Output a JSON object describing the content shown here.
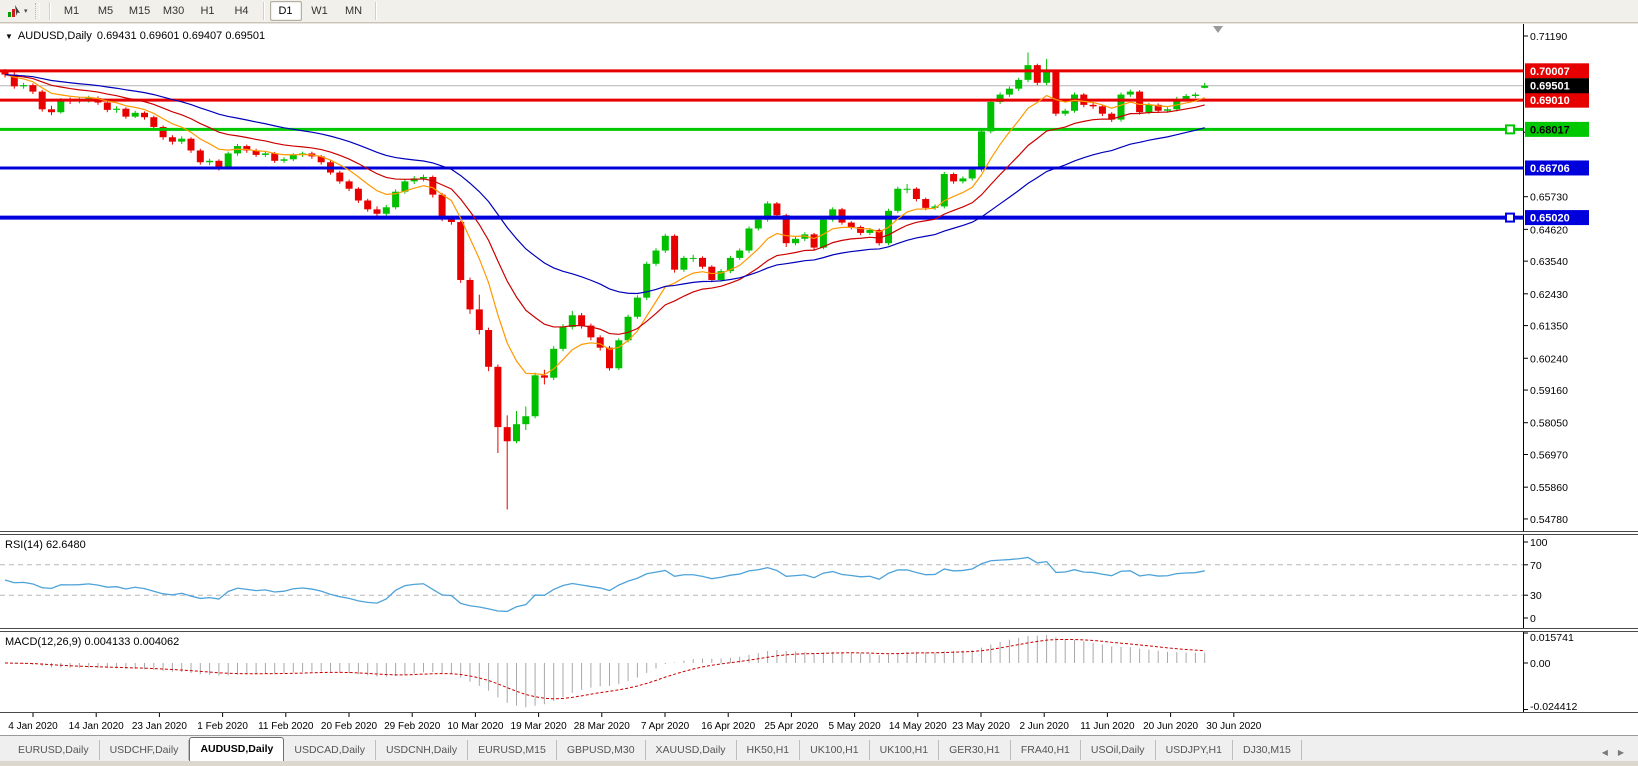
{
  "toolbar": {
    "timeframes": [
      "M1",
      "M5",
      "M15",
      "M30",
      "H1",
      "H4",
      "D1",
      "W1",
      "MN"
    ],
    "active_timeframe": "D1",
    "cursor_tool_icon": "chart-cursor-icon",
    "dropdown_icon": "chevron-down-icon"
  },
  "chart": {
    "title": "AUDUSD,Daily",
    "ohlc_text": "0.69431 0.69601 0.69407 0.69501",
    "current_price": {
      "value": 0.69501,
      "label": "0.69501",
      "line_color": "#b4b4b4",
      "label_bg": "#000000",
      "label_fg": "#ffffff"
    },
    "price_ticks": [
      "0.71190",
      "0.67920",
      "0.65730",
      "0.64620",
      "0.63540",
      "0.62430",
      "0.61350",
      "0.60240",
      "0.59160",
      "0.58050",
      "0.56970",
      "0.55860",
      "0.54780"
    ],
    "hlines": [
      {
        "price": 0.70007,
        "label": "0.70007",
        "color": "#e60000",
        "width": 3,
        "label_fg": "#ffffff"
      },
      {
        "price": 0.6901,
        "label": "0.69010",
        "color": "#e60000",
        "width": 3,
        "label_fg": "#ffffff"
      },
      {
        "price": 0.68017,
        "label": "0.68017",
        "color": "#00c800",
        "width": 3,
        "label_fg": "#000000",
        "handle": true
      },
      {
        "price": 0.66706,
        "label": "0.66706",
        "color": "#0000dd",
        "width": 3,
        "label_fg": "#ffffff"
      },
      {
        "price": 0.6502,
        "label": "0.65020",
        "color": "#0000dd",
        "width": 4,
        "label_fg": "#ffffff",
        "handle": true
      }
    ]
  },
  "rsi": {
    "label": "RSI(14) 62.6480",
    "period": 14,
    "line_color": "#4da3d9",
    "levels": [
      {
        "label": "100",
        "value": 100,
        "dashed": false
      },
      {
        "label": "70",
        "value": 70,
        "dashed": true
      },
      {
        "label": "30",
        "value": 30,
        "dashed": true
      },
      {
        "label": "0",
        "value": 0,
        "dashed": false
      }
    ]
  },
  "macd": {
    "label": "MACD(12,26,9) 0.004133 0.004062",
    "fast": 12,
    "slow": 26,
    "signal": 9,
    "hist_color": "#a8a8a8",
    "signal_color": "#cc0000",
    "axis": [
      {
        "label": "0.015741",
        "value": 0.015741
      },
      {
        "label": "0.00",
        "value": 0
      },
      {
        "label": "-0.024412",
        "value": -0.024412
      }
    ]
  },
  "dates": [
    "4 Jan 2020",
    "14 Jan 2020",
    "23 Jan 2020",
    "1 Feb 2020",
    "11 Feb 2020",
    "20 Feb 2020",
    "29 Feb 2020",
    "10 Mar 2020",
    "19 Mar 2020",
    "28 Mar 2020",
    "7 Apr 2020",
    "16 Apr 2020",
    "25 Apr 2020",
    "5 May 2020",
    "14 May 2020",
    "23 May 2020",
    "2 Jun 2020",
    "11 Jun 2020",
    "20 Jun 2020",
    "30 Jun 2020"
  ],
  "tabs": {
    "items": [
      "EURUSD,Daily",
      "USDCHF,Daily",
      "AUDUSD,Daily",
      "USDCAD,Daily",
      "USDCNH,Daily",
      "EURUSD,M15",
      "GBPUSD,M30",
      "XAUUSD,Daily",
      "HK50,H1",
      "UK100,H1",
      "UK100,H1",
      "GER30,H1",
      "FRA40,H1",
      "USOil,Daily",
      "USDJPY,H1",
      "DJ30,M15"
    ],
    "active_index": 2
  },
  "colors": {
    "up_candle": "#00c000",
    "down_candle": "#e80000",
    "axis_text": "#000000",
    "level_dash": "#b8b8b8"
  },
  "chart_data": {
    "type": "candlestick",
    "symbol": "AUDUSD",
    "timeframe": "Daily",
    "overlays": [
      {
        "name": "ma-fast",
        "period": 8,
        "color": "#ff9900"
      },
      {
        "name": "ma-mid",
        "period": 17,
        "color": "#cc0000"
      },
      {
        "name": "ma-slow",
        "period": 34,
        "color": "#0000bb"
      }
    ],
    "price_top": 0.7119,
    "price_bottom": 0.544,
    "candles": [
      [
        0.7,
        0.7007,
        0.6978,
        0.6988
      ],
      [
        0.6988,
        0.6995,
        0.694,
        0.6948
      ],
      [
        0.6948,
        0.696,
        0.694,
        0.6952
      ],
      [
        0.6952,
        0.6958,
        0.6922,
        0.693
      ],
      [
        0.693,
        0.6936,
        0.6862,
        0.687
      ],
      [
        0.687,
        0.6882,
        0.685,
        0.686
      ],
      [
        0.686,
        0.6908,
        0.6855,
        0.69
      ],
      [
        0.69,
        0.691,
        0.6888,
        0.6898
      ],
      [
        0.6898,
        0.691,
        0.689,
        0.69
      ],
      [
        0.69,
        0.6916,
        0.6893,
        0.6908
      ],
      [
        0.6908,
        0.6914,
        0.6885,
        0.6893
      ],
      [
        0.6893,
        0.6899,
        0.686,
        0.6868
      ],
      [
        0.6868,
        0.688,
        0.6858,
        0.6872
      ],
      [
        0.6872,
        0.6877,
        0.6838,
        0.6845
      ],
      [
        0.6845,
        0.6865,
        0.684,
        0.6858
      ],
      [
        0.6858,
        0.6863,
        0.6835,
        0.6843
      ],
      [
        0.6843,
        0.6848,
        0.68,
        0.681
      ],
      [
        0.681,
        0.6815,
        0.6766,
        0.6775
      ],
      [
        0.6775,
        0.6782,
        0.675,
        0.676
      ],
      [
        0.676,
        0.6778,
        0.6752,
        0.677
      ],
      [
        0.677,
        0.6775,
        0.6722,
        0.673
      ],
      [
        0.673,
        0.6736,
        0.6682,
        0.669
      ],
      [
        0.669,
        0.6702,
        0.668,
        0.6695
      ],
      [
        0.6695,
        0.67,
        0.6662,
        0.667
      ],
      [
        0.667,
        0.6726,
        0.6665,
        0.672
      ],
      [
        0.672,
        0.6752,
        0.6712,
        0.6745
      ],
      [
        0.6745,
        0.675,
        0.6722,
        0.673
      ],
      [
        0.673,
        0.6736,
        0.6708,
        0.6715
      ],
      [
        0.6715,
        0.6727,
        0.6708,
        0.672
      ],
      [
        0.672,
        0.6725,
        0.6688,
        0.6695
      ],
      [
        0.6695,
        0.6707,
        0.6688,
        0.67
      ],
      [
        0.67,
        0.6721,
        0.6694,
        0.6715
      ],
      [
        0.6715,
        0.6726,
        0.6708,
        0.672
      ],
      [
        0.672,
        0.6726,
        0.6702,
        0.671
      ],
      [
        0.671,
        0.6715,
        0.6682,
        0.669
      ],
      [
        0.669,
        0.6696,
        0.6648,
        0.6655
      ],
      [
        0.6655,
        0.6661,
        0.6617,
        0.6625
      ],
      [
        0.6625,
        0.6631,
        0.6592,
        0.66
      ],
      [
        0.66,
        0.6605,
        0.6552,
        0.656
      ],
      [
        0.656,
        0.6566,
        0.6522,
        0.653
      ],
      [
        0.653,
        0.654,
        0.6505,
        0.6515
      ],
      [
        0.6515,
        0.6545,
        0.6508,
        0.6537
      ],
      [
        0.6537,
        0.6598,
        0.653,
        0.659
      ],
      [
        0.659,
        0.6633,
        0.6583,
        0.6625
      ],
      [
        0.6625,
        0.6643,
        0.6616,
        0.6635
      ],
      [
        0.6635,
        0.6648,
        0.6625,
        0.664
      ],
      [
        0.664,
        0.6645,
        0.657,
        0.658
      ],
      [
        0.658,
        0.6586,
        0.649,
        0.65
      ],
      [
        0.65,
        0.6508,
        0.6478,
        0.6487
      ],
      [
        0.6487,
        0.6492,
        0.628,
        0.629
      ],
      [
        0.629,
        0.6298,
        0.6175,
        0.619
      ],
      [
        0.619,
        0.624,
        0.6105,
        0.612
      ],
      [
        0.612,
        0.6128,
        0.598,
        0.5995
      ],
      [
        0.5995,
        0.6003,
        0.5702,
        0.579
      ],
      [
        0.579,
        0.583,
        0.551,
        0.5742
      ],
      [
        0.5742,
        0.5845,
        0.5735,
        0.58
      ],
      [
        0.58,
        0.586,
        0.578,
        0.5827
      ],
      [
        0.5827,
        0.5975,
        0.582,
        0.5966
      ],
      [
        0.5966,
        0.5985,
        0.5935,
        0.5958
      ],
      [
        0.5958,
        0.6065,
        0.595,
        0.6056
      ],
      [
        0.6056,
        0.614,
        0.6048,
        0.613
      ],
      [
        0.613,
        0.6185,
        0.6122,
        0.617
      ],
      [
        0.617,
        0.6178,
        0.6125,
        0.6135
      ],
      [
        0.6135,
        0.6142,
        0.6085,
        0.6095
      ],
      [
        0.6095,
        0.6102,
        0.605,
        0.606
      ],
      [
        0.606,
        0.6066,
        0.5982,
        0.599
      ],
      [
        0.599,
        0.6092,
        0.5984,
        0.6085
      ],
      [
        0.6085,
        0.6172,
        0.6078,
        0.6165
      ],
      [
        0.6165,
        0.6238,
        0.6158,
        0.623
      ],
      [
        0.623,
        0.6352,
        0.6222,
        0.6345
      ],
      [
        0.6345,
        0.6398,
        0.6338,
        0.639
      ],
      [
        0.639,
        0.6447,
        0.6382,
        0.644
      ],
      [
        0.644,
        0.6445,
        0.6315,
        0.6325
      ],
      [
        0.6325,
        0.6372,
        0.6318,
        0.6365
      ],
      [
        0.6365,
        0.6376,
        0.6352,
        0.6365
      ],
      [
        0.6365,
        0.637,
        0.6328,
        0.6335
      ],
      [
        0.6335,
        0.634,
        0.6282,
        0.629
      ],
      [
        0.629,
        0.6327,
        0.6284,
        0.632
      ],
      [
        0.632,
        0.6372,
        0.6313,
        0.6365
      ],
      [
        0.6365,
        0.6397,
        0.6358,
        0.639
      ],
      [
        0.639,
        0.6472,
        0.6382,
        0.6465
      ],
      [
        0.6465,
        0.6502,
        0.6458,
        0.6495
      ],
      [
        0.6495,
        0.6557,
        0.6488,
        0.655
      ],
      [
        0.655,
        0.6555,
        0.6502,
        0.651
      ],
      [
        0.651,
        0.6515,
        0.6402,
        0.6415
      ],
      [
        0.6415,
        0.6437,
        0.6408,
        0.643
      ],
      [
        0.643,
        0.6452,
        0.6422,
        0.6445
      ],
      [
        0.6445,
        0.645,
        0.6392,
        0.64
      ],
      [
        0.64,
        0.6502,
        0.6394,
        0.6495
      ],
      [
        0.6495,
        0.6537,
        0.6488,
        0.653
      ],
      [
        0.653,
        0.6535,
        0.6478,
        0.6485
      ],
      [
        0.6485,
        0.649,
        0.6462,
        0.647
      ],
      [
        0.647,
        0.6475,
        0.6442,
        0.645
      ],
      [
        0.645,
        0.6467,
        0.6443,
        0.646
      ],
      [
        0.646,
        0.6465,
        0.6407,
        0.6415
      ],
      [
        0.6415,
        0.6532,
        0.6408,
        0.6525
      ],
      [
        0.6525,
        0.6607,
        0.6518,
        0.66
      ],
      [
        0.66,
        0.6616,
        0.6585,
        0.66
      ],
      [
        0.66,
        0.6605,
        0.6557,
        0.6565
      ],
      [
        0.6565,
        0.657,
        0.6527,
        0.6535
      ],
      [
        0.6535,
        0.6547,
        0.6528,
        0.654
      ],
      [
        0.654,
        0.6657,
        0.6533,
        0.665
      ],
      [
        0.665,
        0.6655,
        0.6617,
        0.6625
      ],
      [
        0.6625,
        0.6642,
        0.6618,
        0.6635
      ],
      [
        0.6635,
        0.6672,
        0.6628,
        0.6665
      ],
      [
        0.6665,
        0.6802,
        0.6658,
        0.6795
      ],
      [
        0.6795,
        0.6902,
        0.6788,
        0.6895
      ],
      [
        0.6895,
        0.6927,
        0.6888,
        0.692
      ],
      [
        0.692,
        0.6947,
        0.6912,
        0.694
      ],
      [
        0.694,
        0.6977,
        0.6932,
        0.697
      ],
      [
        0.697,
        0.7063,
        0.6962,
        0.702
      ],
      [
        0.702,
        0.7025,
        0.6952,
        0.696
      ],
      [
        0.696,
        0.7041,
        0.6952,
        0.7
      ],
      [
        0.7,
        0.7005,
        0.6847,
        0.6855
      ],
      [
        0.6855,
        0.6872,
        0.6848,
        0.6865
      ],
      [
        0.6865,
        0.6927,
        0.6858,
        0.692
      ],
      [
        0.692,
        0.6925,
        0.6877,
        0.6885
      ],
      [
        0.6885,
        0.6892,
        0.6872,
        0.688
      ],
      [
        0.688,
        0.6885,
        0.6847,
        0.6855
      ],
      [
        0.6855,
        0.686,
        0.6827,
        0.6835
      ],
      [
        0.6835,
        0.6927,
        0.6828,
        0.692
      ],
      [
        0.692,
        0.6937,
        0.6912,
        0.693
      ],
      [
        0.693,
        0.6935,
        0.6852,
        0.686
      ],
      [
        0.686,
        0.6892,
        0.6853,
        0.6885
      ],
      [
        0.6885,
        0.689,
        0.6857,
        0.6865
      ],
      [
        0.6865,
        0.6877,
        0.6858,
        0.687
      ],
      [
        0.687,
        0.6912,
        0.6863,
        0.6905
      ],
      [
        0.6905,
        0.6922,
        0.6898,
        0.6915
      ],
      [
        0.6915,
        0.6927,
        0.6908,
        0.692
      ],
      [
        0.6943,
        0.696,
        0.6941,
        0.695
      ]
    ]
  }
}
